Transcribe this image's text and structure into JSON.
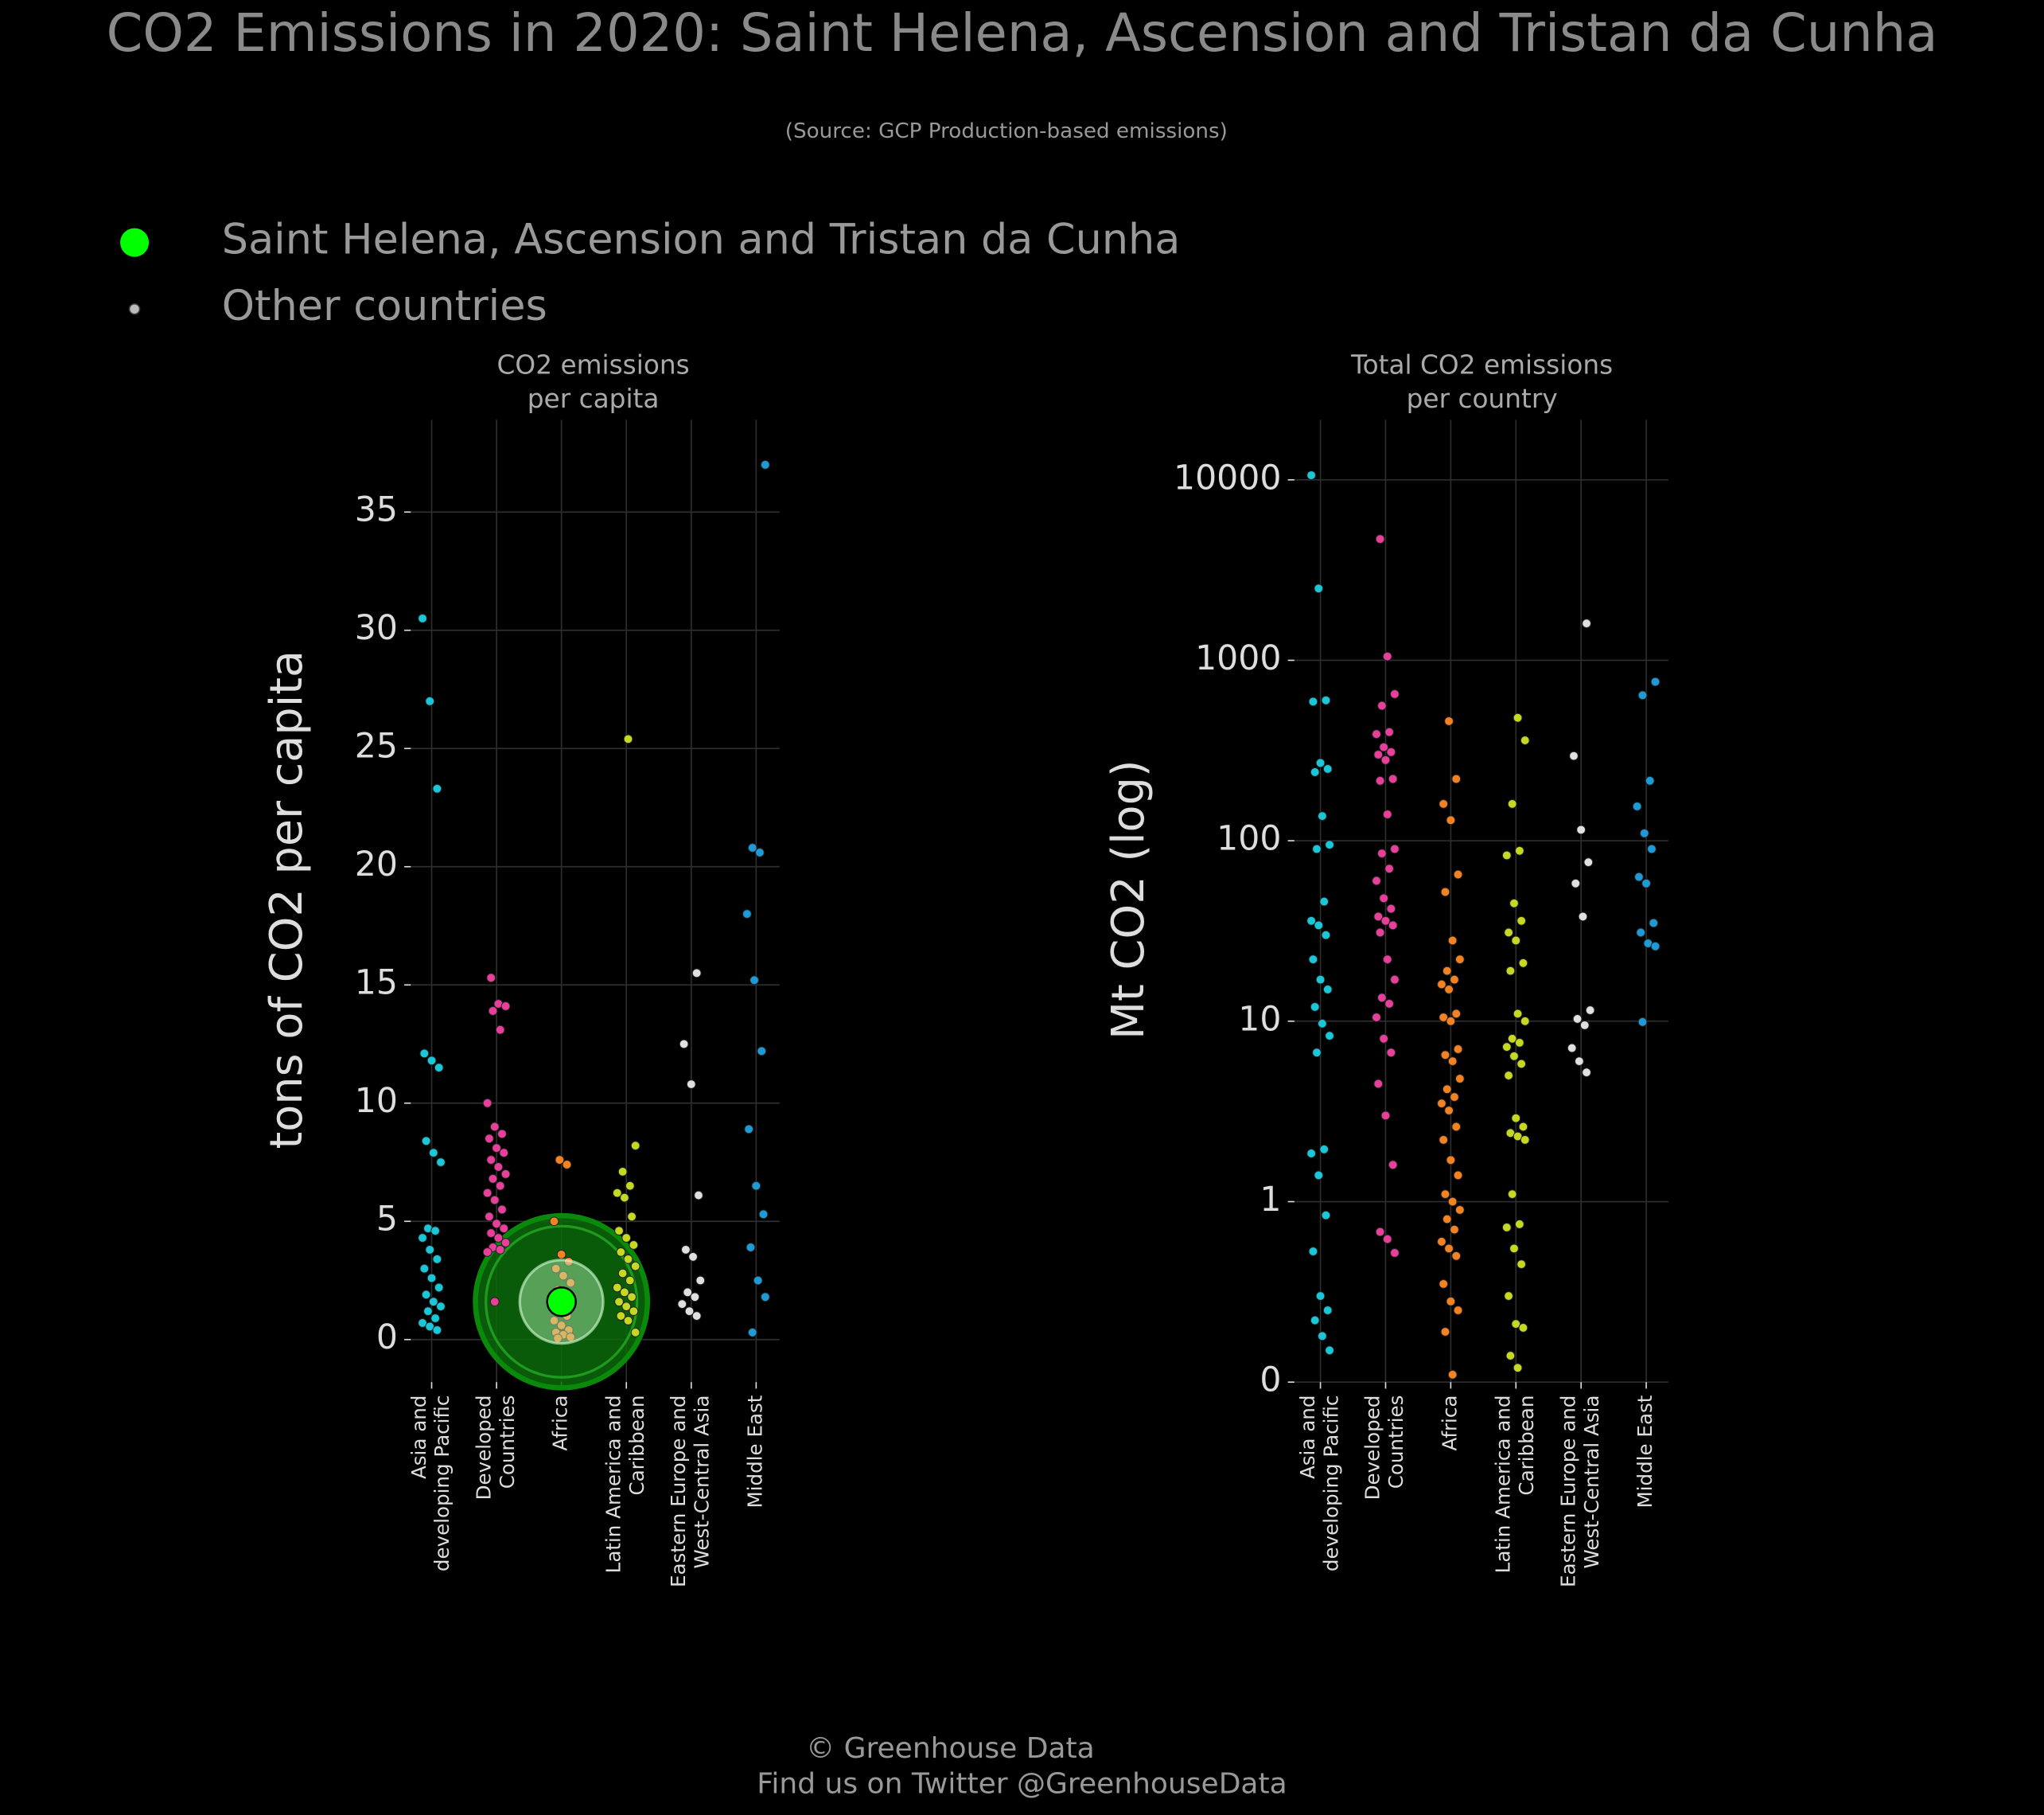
{
  "title": "CO2 Emissions in 2020: Saint Helena, Ascension and Tristan da Cunha",
  "subtitle": "(Source: GCP Production-based emissions)",
  "legend": [
    {
      "name": "Saint Helena, Ascension and Tristan da Cunha",
      "color": "#00ff00"
    },
    {
      "name": "Other countries",
      "color": "#bbbbbb"
    }
  ],
  "footer": [
    "© Greenhouse Data",
    "Find us on Twitter @GreenhouseData"
  ],
  "chart_data": [
    {
      "type": "strip",
      "title": [
        "CO2 emissions",
        "per capita"
      ],
      "ylabel": "tons of CO2 per capita",
      "log": false,
      "grid": true,
      "ylim": [
        -1.8,
        38.9
      ],
      "yticks": [
        0,
        5,
        10,
        15,
        20,
        25,
        30,
        35
      ],
      "categories": [
        "Asia and developing Pacific",
        "Developed Countries",
        "Africa",
        "Latin America and Caribbean",
        "Eastern Europe and West-Central Asia",
        "Middle East"
      ],
      "groups": [
        {
          "color": "#1ac7d8",
          "values": [
            30.5,
            27,
            23.3,
            12.1,
            11.8,
            11.5,
            8.4,
            7.9,
            7.5,
            4.7,
            4.6,
            4.3,
            3.8,
            3.4,
            3.0,
            2.6,
            2.2,
            1.9,
            1.6,
            1.4,
            1.2,
            0.9,
            0.7,
            0.55,
            0.4
          ]
        },
        {
          "color": "#e8409a",
          "values": [
            15.3,
            14.2,
            14.1,
            13.9,
            13.1,
            10.0,
            9.0,
            8.7,
            8.5,
            8.1,
            7.9,
            7.6,
            7.3,
            7.0,
            6.8,
            6.5,
            6.2,
            5.9,
            5.5,
            5.2,
            4.9,
            4.7,
            4.5,
            4.3,
            4.1,
            3.9,
            3.8,
            3.7,
            1.6
          ]
        },
        {
          "color": "#f58220",
          "values": [
            7.6,
            7.4,
            5.0,
            3.6,
            3.3,
            3.0,
            2.7,
            2.4,
            2.1,
            1.8,
            1.5,
            1.2,
            1.0,
            0.8,
            0.6,
            0.4,
            0.3,
            0.2,
            0.1,
            0.05
          ]
        },
        {
          "color": "#c5d822",
          "values": [
            25.4,
            8.2,
            7.1,
            6.5,
            6.2,
            6.0,
            5.2,
            4.6,
            4.3,
            4.0,
            3.7,
            3.4,
            3.1,
            2.8,
            2.5,
            2.2,
            2.0,
            1.8,
            1.6,
            1.4,
            1.2,
            1.0,
            0.8,
            0.3
          ]
        },
        {
          "color": "#e0e0e0",
          "values": [
            15.5,
            12.5,
            10.8,
            6.1,
            3.8,
            3.5,
            2.5,
            2.0,
            1.8,
            1.5,
            1.2,
            1.0
          ]
        },
        {
          "color": "#1e9ad6",
          "values": [
            37.0,
            20.8,
            20.6,
            18.0,
            15.2,
            12.2,
            8.9,
            6.5,
            5.3,
            3.9,
            2.5,
            1.8,
            0.3
          ]
        }
      ],
      "highlight": {
        "category": "Africa",
        "value": 1.6,
        "color": "#00ff00"
      }
    },
    {
      "type": "strip",
      "title": [
        "Total CO2 emissions",
        "per country"
      ],
      "ylabel": "Mt CO2 (log)",
      "log": true,
      "grid": true,
      "ylim": [
        0.1,
        21500
      ],
      "yticks": [
        {
          "value": 0.1,
          "label": "0"
        },
        1,
        10,
        100,
        1000,
        10000
      ],
      "categories": [
        "Asia and developing Pacific",
        "Developed Countries",
        "Africa",
        "Latin America and Caribbean",
        "Eastern Europe and West-Central Asia",
        "Middle East"
      ],
      "groups": [
        {
          "color": "#1ac7d8",
          "values": [
            10600,
            2500,
            600,
            590,
            270,
            250,
            240,
            137,
            95,
            90,
            46,
            36,
            34,
            30,
            22,
            17,
            15,
            12,
            9.7,
            8.3,
            6.7,
            1.95,
            1.85,
            1.4,
            0.84,
            0.53,
            0.3,
            0.25,
            0.22,
            0.18,
            0.15
          ]
        },
        {
          "color": "#e8409a",
          "values": [
            4700,
            1050,
            650,
            560,
            400,
            390,
            330,
            310,
            300,
            280,
            220,
            215,
            140,
            90,
            85,
            70,
            60,
            48,
            42,
            38,
            36,
            34,
            31,
            22,
            17,
            13.5,
            12.5,
            10.5,
            8,
            6.7,
            4.5,
            3,
            1.6,
            0.68,
            0.62,
            0.52
          ]
        },
        {
          "color": "#f58220",
          "values": [
            460,
            220,
            160,
            130,
            65,
            52,
            28,
            22,
            19,
            17,
            16,
            15,
            11,
            10.5,
            10,
            7,
            6.5,
            6,
            4.8,
            4.2,
            3.8,
            3.5,
            3.2,
            2.6,
            2.2,
            1.7,
            1.4,
            1.1,
            1.0,
            0.9,
            0.8,
            0.7,
            0.6,
            0.55,
            0.5,
            0.35,
            0.28,
            0.25,
            0.19,
            0.11
          ]
        },
        {
          "color": "#c5d822",
          "values": [
            480,
            360,
            160,
            88,
            83,
            45,
            36,
            31,
            28,
            21,
            19,
            11,
            10,
            8,
            7.6,
            7.2,
            6.4,
            5.8,
            5.0,
            2.9,
            2.6,
            2.4,
            2.3,
            2.2,
            1.1,
            0.75,
            0.72,
            0.55,
            0.45,
            0.3,
            0.21,
            0.2,
            0.14,
            0.12
          ]
        },
        {
          "color": "#e0e0e0",
          "values": [
            1600,
            295,
            115,
            76,
            58,
            38,
            11.5,
            10.3,
            9.5,
            7.1,
            6.0,
            5.2
          ]
        },
        {
          "color": "#1e9ad6",
          "values": [
            760,
            640,
            215,
            155,
            110,
            90,
            63,
            58,
            35,
            31,
            27,
            26,
            9.9
          ]
        }
      ]
    }
  ]
}
